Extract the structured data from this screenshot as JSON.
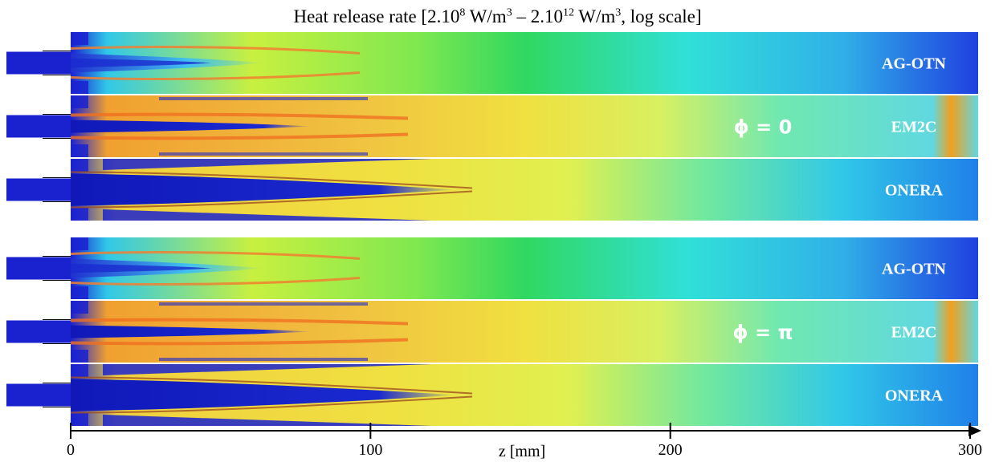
{
  "title": {
    "prefix": "Heat release rate [2.10",
    "exp1": "8",
    "mid1": " W/m",
    "exp2": "3",
    "mid2": " – 2.10",
    "exp3": "12",
    "mid3": " W/m",
    "exp4": "3",
    "suffix": ", log scale]"
  },
  "groups": [
    {
      "phase_label": "ϕ = 0",
      "panels": [
        {
          "label": "AG-OTN",
          "model": "agotn"
        },
        {
          "label": "EM2C",
          "model": "em2c"
        },
        {
          "label": "ONERA",
          "model": "onera"
        }
      ]
    },
    {
      "phase_label": "ϕ = π",
      "panels": [
        {
          "label": "AG-OTN",
          "model": "agotn"
        },
        {
          "label": "EM2C",
          "model": "em2c"
        },
        {
          "label": "ONERA",
          "model": "onera"
        }
      ]
    }
  ],
  "axis": {
    "label": "z [mm]",
    "ticks": [
      "0",
      "100",
      "200",
      "300"
    ],
    "range": [
      0,
      300
    ]
  },
  "colormap": {
    "low": "#1020d8",
    "mid_low": "#20d8f0",
    "mid": "#38d848",
    "mid_high": "#f0f030",
    "high": "#f07020"
  }
}
